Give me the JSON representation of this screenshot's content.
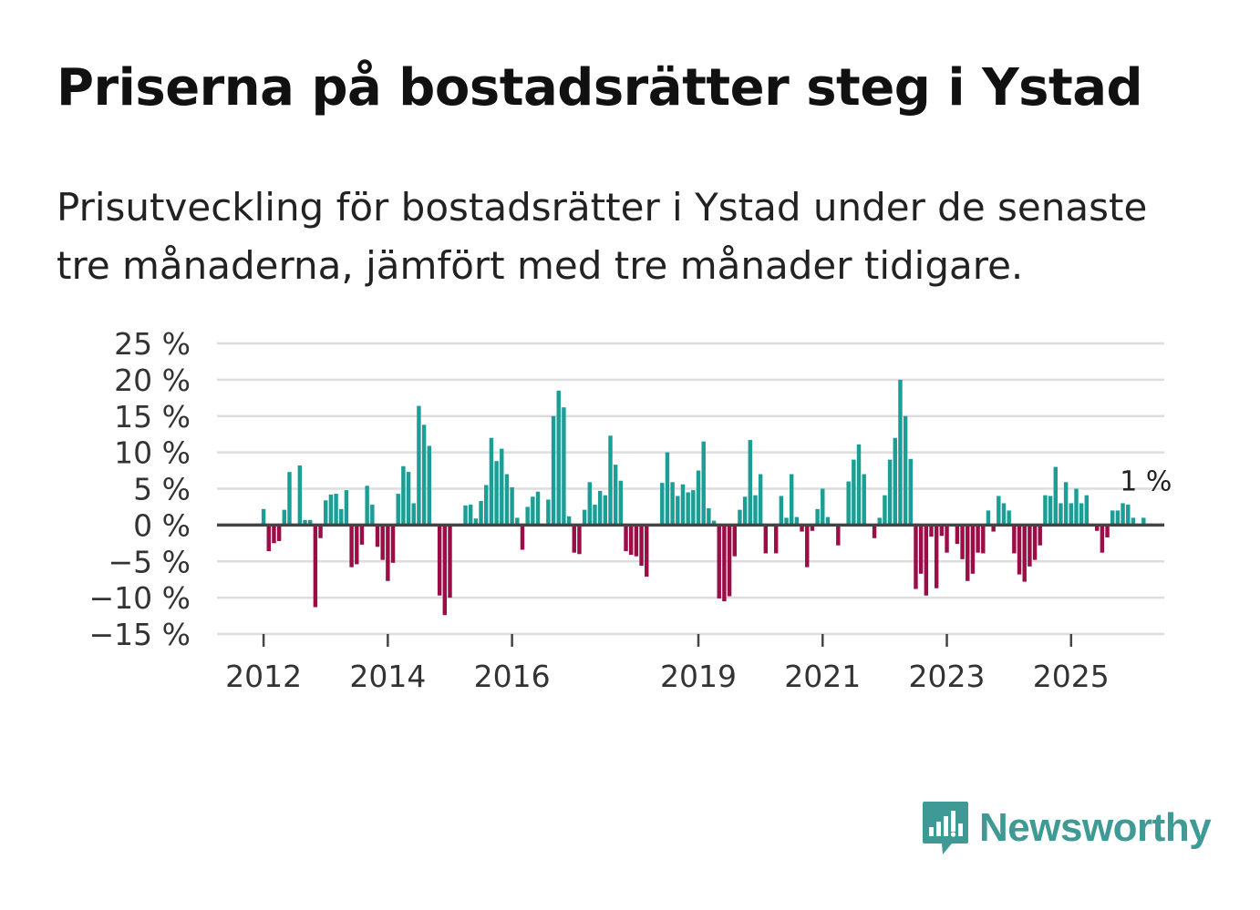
{
  "title": "Priserna på bostadsrätter steg i Ystad",
  "subtitle": "Prisutveckling för bostadsrätter i Ystad under de senaste tre månaderna, jämfört med tre månader tidigare.",
  "brand": "Newsworthy",
  "colors": {
    "positive": "#1a9e96",
    "negative": "#9b0d47",
    "grid": "#dddddd",
    "zero": "#444444",
    "brand": "#3f9a96"
  },
  "chart_data": {
    "type": "bar",
    "ylabel": "",
    "xlabel": "",
    "ylim": [
      -15,
      25
    ],
    "y_ticks": [
      25,
      20,
      15,
      10,
      5,
      0,
      -5,
      -10,
      -15
    ],
    "y_tick_labels": [
      "25 %",
      "20 %",
      "15 %",
      "10 %",
      "5 %",
      "0 %",
      "−5 %",
      "−10 %",
      "−15 %"
    ],
    "x_ticks": [
      {
        "year": 2012,
        "label": "2012"
      },
      {
        "year": 2014,
        "label": "2014"
      },
      {
        "year": 2016,
        "label": "2016"
      },
      {
        "year": 2019,
        "label": "2019"
      },
      {
        "year": 2021,
        "label": "2021"
      },
      {
        "year": 2023,
        "label": "2023"
      },
      {
        "year": 2025,
        "label": "2025"
      }
    ],
    "x_start": 2011.25,
    "x_end": 2026.5,
    "last_value_label": "1 %",
    "series": [
      {
        "name": "Prisutveckling",
        "values": [
          null,
          null,
          null,
          null,
          null,
          null,
          null,
          null,
          null,
          2.2,
          -3.6,
          -2.5,
          -2.2,
          2.1,
          7.3,
          null,
          8.2,
          0.7,
          0.7,
          -11.3,
          -1.8,
          3.4,
          4.2,
          4.3,
          2.2,
          4.8,
          -5.8,
          -5.4,
          -2.7,
          5.4,
          2.8,
          -3.0,
          -4.8,
          -7.7,
          -5.2,
          4.3,
          8.1,
          7.3,
          3.0,
          16.4,
          13.8,
          10.9,
          null,
          -9.7,
          -12.4,
          -10.0,
          null,
          null,
          2.7,
          2.8,
          0.9,
          3.3,
          5.5,
          12.0,
          8.8,
          10.5,
          7.0,
          5.2,
          1.0,
          -3.4,
          2.5,
          3.9,
          4.6,
          null,
          3.5,
          15.0,
          18.5,
          16.2,
          1.2,
          -3.8,
          -4.0,
          2.1,
          5.9,
          2.8,
          4.7,
          4.1,
          12.3,
          8.3,
          6.1,
          -3.6,
          -4.1,
          -4.3,
          -5.6,
          -7.1,
          null,
          null,
          5.8,
          10.0,
          5.9,
          4.0,
          5.6,
          4.5,
          4.8,
          7.5,
          11.5,
          2.3,
          0.6,
          -10.1,
          -10.5,
          -9.8,
          -4.3,
          2.1,
          3.9,
          11.7,
          4.1,
          7.0,
          -3.9,
          null,
          -3.9,
          4.0,
          1.0,
          7.0,
          1.1,
          -0.9,
          -5.8,
          -0.8,
          2.2,
          5.0,
          1.1,
          null,
          -2.8,
          null,
          6.0,
          9.0,
          11.1,
          7.0,
          null,
          -1.8,
          1.0,
          4.1,
          9.0,
          12.0,
          20.0,
          15.0,
          9.1,
          -8.8,
          -6.7,
          -9.7,
          -1.6,
          -8.7,
          -1.5,
          -3.8,
          null,
          -2.6,
          -4.7,
          -7.7,
          -6.7,
          -3.8,
          -3.9,
          2.0,
          -0.9,
          4.0,
          3.0,
          2.0,
          -3.9,
          -6.8,
          -7.8,
          -5.7,
          -4.8,
          -2.8,
          4.1,
          4.0,
          8.0,
          3.0,
          5.9,
          3.0,
          5.0,
          3.0,
          4.1,
          null,
          -0.8,
          -3.8,
          -1.7,
          2.0,
          2.0,
          3.0,
          2.8,
          1.0,
          null,
          1.0
        ]
      }
    ]
  }
}
